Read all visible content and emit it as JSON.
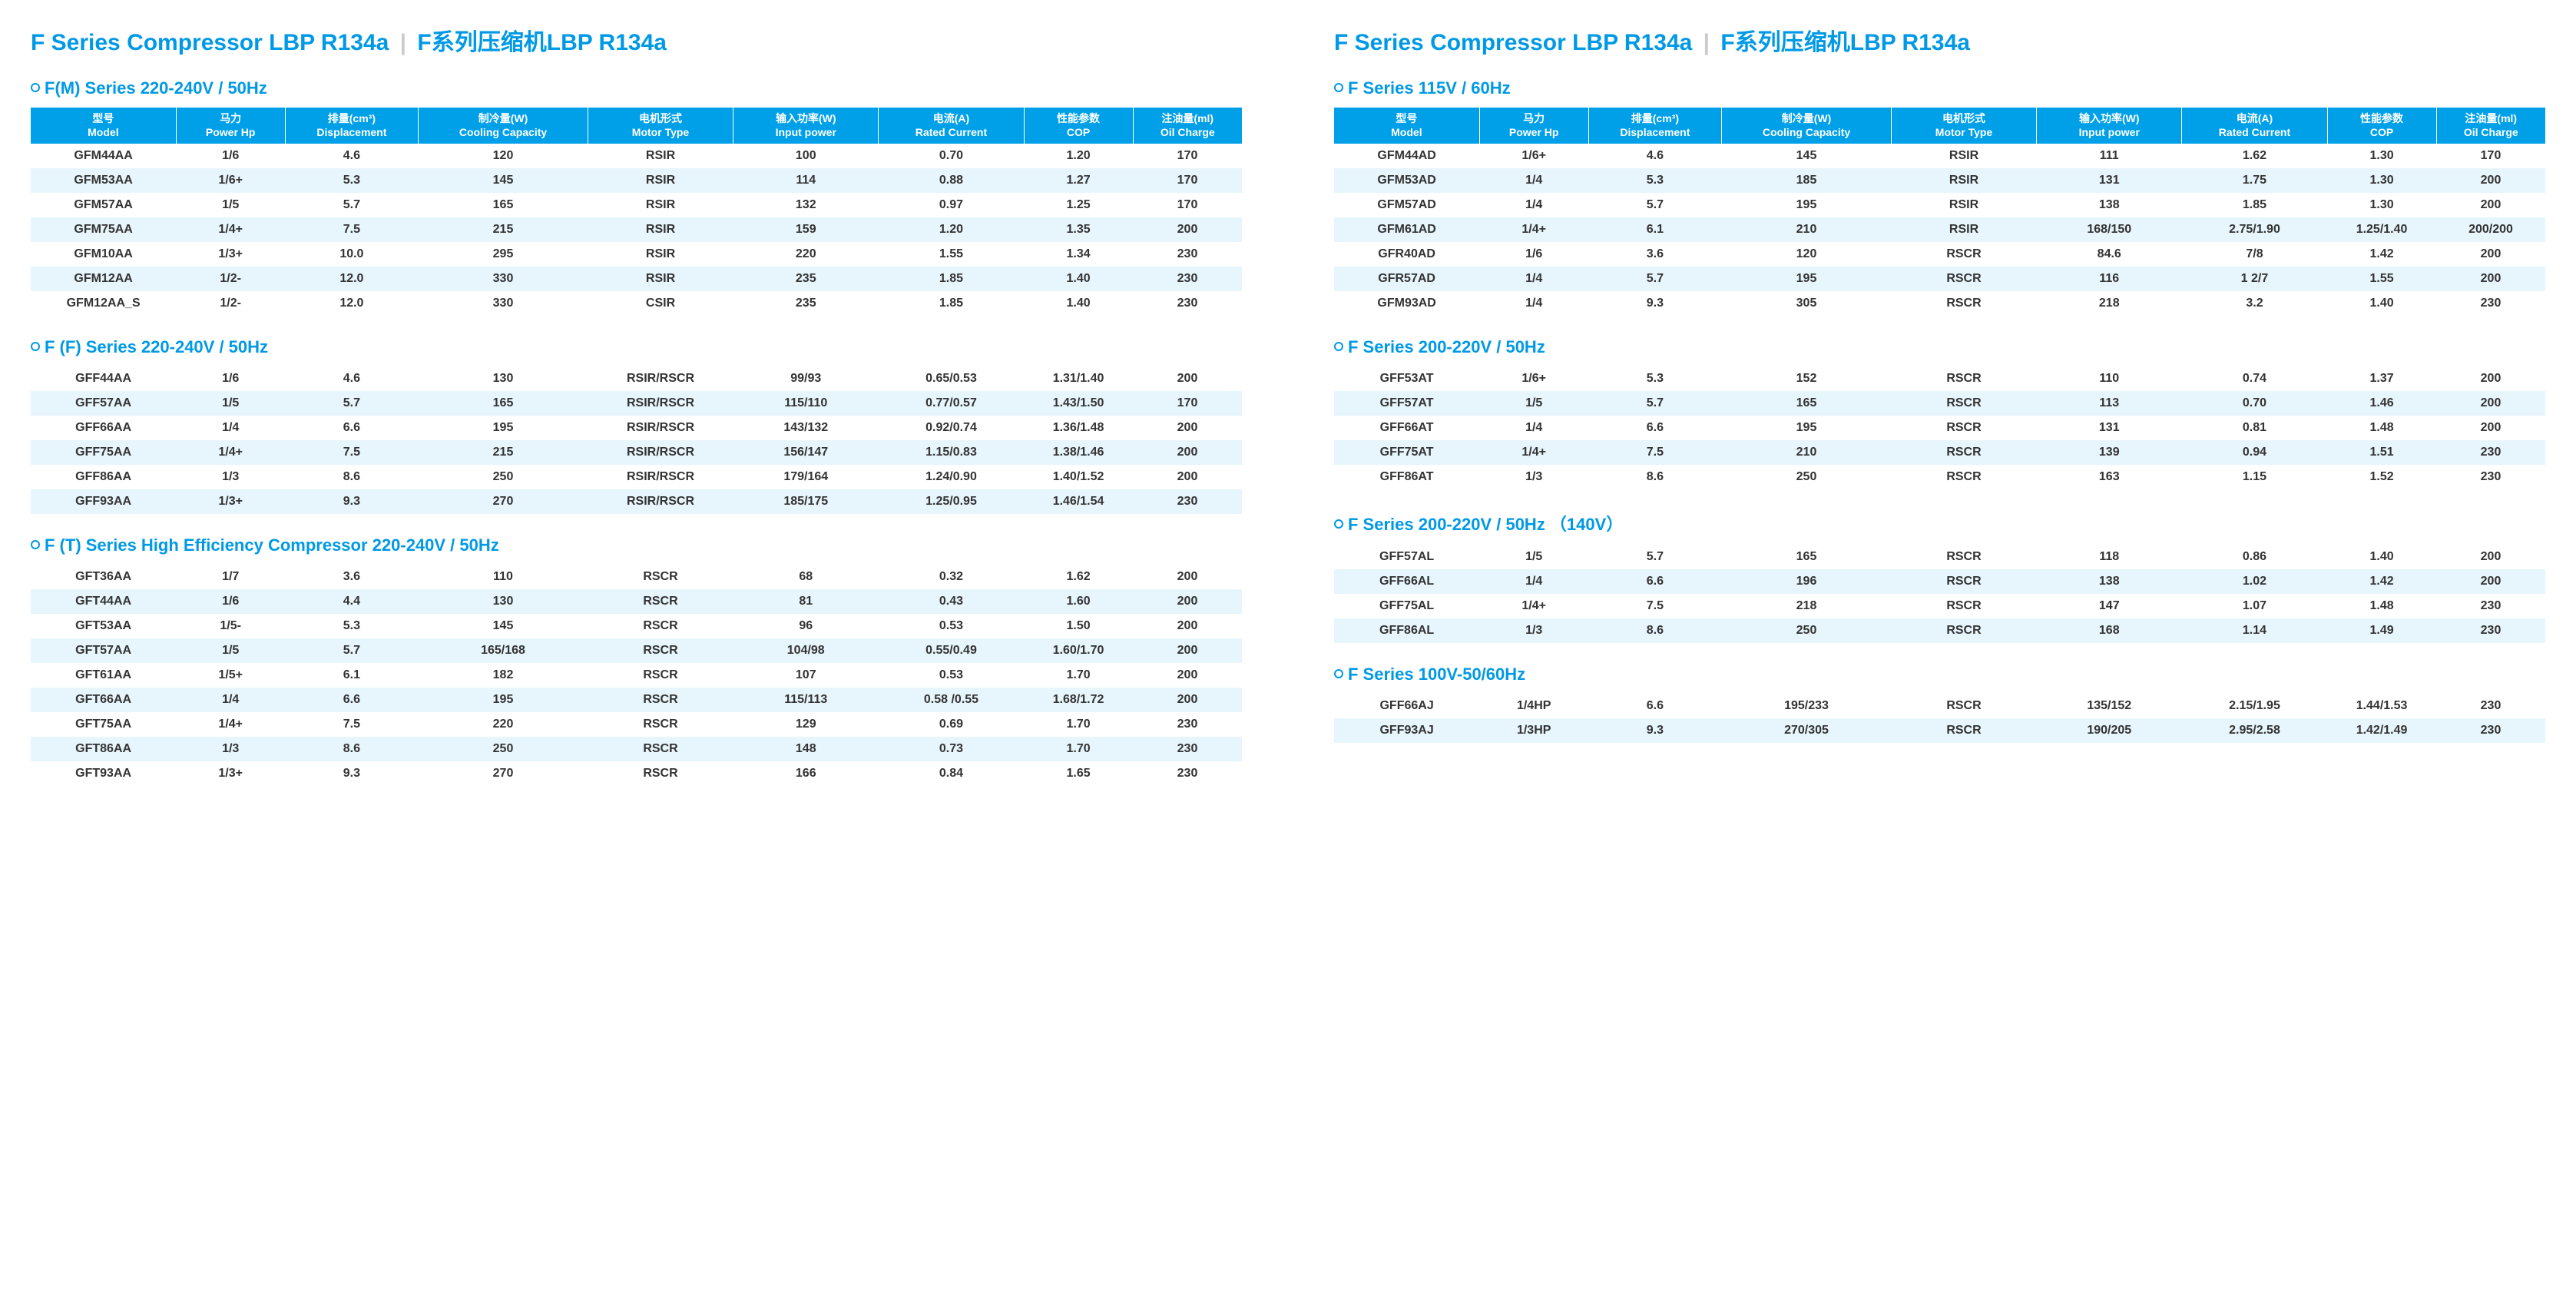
{
  "colors": {
    "brand": "#0099e5",
    "header_bg": "#00a0e9",
    "row_alt": "#e7f5fc",
    "text": "#333333",
    "bg": "#ffffff"
  },
  "page_title_en": "F Series Compressor LBP R134a",
  "page_title_zh": "F系列压缩机LBP R134a",
  "headers": [
    {
      "zh": "型号",
      "en": "Model"
    },
    {
      "zh": "马力",
      "en": "Power Hp"
    },
    {
      "zh": "排量(cm³)",
      "en": "Displacement"
    },
    {
      "zh": "制冷量(W)",
      "en": "Cooling Capacity"
    },
    {
      "zh": "电机形式",
      "en": "Motor Type"
    },
    {
      "zh": "输入功率(W)",
      "en": "Input power"
    },
    {
      "zh": "电流(A)",
      "en": "Rated Current"
    },
    {
      "zh": "性能参数",
      "en": "COP"
    },
    {
      "zh": "注油量(ml)",
      "en": "Oil Charge"
    }
  ],
  "col_widths": [
    "12%",
    "9%",
    "11%",
    "14%",
    "12%",
    "12%",
    "12%",
    "9%",
    "9%"
  ],
  "sections_left": [
    {
      "title": "F(M) Series  220-240V / 50Hz",
      "show_header": true,
      "rows": [
        [
          "GFM44AA",
          "1/6",
          "4.6",
          "120",
          "RSIR",
          "100",
          "0.70",
          "1.20",
          "170"
        ],
        [
          "GFM53AA",
          "1/6+",
          "5.3",
          "145",
          "RSIR",
          "114",
          "0.88",
          "1.27",
          "170"
        ],
        [
          "GFM57AA",
          "1/5",
          "5.7",
          "165",
          "RSIR",
          "132",
          "0.97",
          "1.25",
          "170"
        ],
        [
          "GFM75AA",
          "1/4+",
          "7.5",
          "215",
          "RSIR",
          "159",
          "1.20",
          "1.35",
          "200"
        ],
        [
          "GFM10AA",
          "1/3+",
          "10.0",
          "295",
          "RSIR",
          "220",
          "1.55",
          "1.34",
          "230"
        ],
        [
          "GFM12AA",
          "1/2-",
          "12.0",
          "330",
          "RSIR",
          "235",
          "1.85",
          "1.40",
          "230"
        ],
        [
          "GFM12AA_S",
          "1/2-",
          "12.0",
          "330",
          "CSIR",
          "235",
          "1.85",
          "1.40",
          "230"
        ]
      ]
    },
    {
      "title": "F (F) Series   220-240V / 50Hz",
      "show_header": false,
      "rows": [
        [
          "GFF44AA",
          "1/6",
          "4.6",
          "130",
          "RSIR/RSCR",
          "99/93",
          "0.65/0.53",
          "1.31/1.40",
          "200"
        ],
        [
          "GFF57AA",
          "1/5",
          "5.7",
          "165",
          "RSIR/RSCR",
          "115/110",
          "0.77/0.57",
          "1.43/1.50",
          "170"
        ],
        [
          "GFF66AA",
          "1/4",
          "6.6",
          "195",
          "RSIR/RSCR",
          "143/132",
          "0.92/0.74",
          "1.36/1.48",
          "200"
        ],
        [
          "GFF75AA",
          "1/4+",
          "7.5",
          "215",
          "RSIR/RSCR",
          "156/147",
          "1.15/0.83",
          "1.38/1.46",
          "200"
        ],
        [
          "GFF86AA",
          "1/3",
          "8.6",
          "250",
          "RSIR/RSCR",
          "179/164",
          "1.24/0.90",
          "1.40/1.52",
          "200"
        ],
        [
          "GFF93AA",
          "1/3+",
          "9.3",
          "270",
          "RSIR/RSCR",
          "185/175",
          "1.25/0.95",
          "1.46/1.54",
          "230"
        ]
      ]
    },
    {
      "title": "F (T) Series High Efficiency Compressor 220-240V / 50Hz",
      "show_header": false,
      "rows": [
        [
          "GFT36AA",
          "1/7",
          "3.6",
          "110",
          "RSCR",
          "68",
          "0.32",
          "1.62",
          "200"
        ],
        [
          "GFT44AA",
          "1/6",
          "4.4",
          "130",
          "RSCR",
          "81",
          "0.43",
          "1.60",
          "200"
        ],
        [
          "GFT53AA",
          "1/5-",
          "5.3",
          "145",
          "RSCR",
          "96",
          "0.53",
          "1.50",
          "200"
        ],
        [
          "GFT57AA",
          "1/5",
          "5.7",
          "165/168",
          "RSCR",
          "104/98",
          "0.55/0.49",
          "1.60/1.70",
          "200"
        ],
        [
          "GFT61AA",
          "1/5+",
          "6.1",
          "182",
          "RSCR",
          "107",
          "0.53",
          "1.70",
          "200"
        ],
        [
          "GFT66AA",
          "1/4",
          "6.6",
          "195",
          "RSCR",
          "115/113",
          "0.58 /0.55",
          "1.68/1.72",
          "200"
        ],
        [
          "GFT75AA",
          "1/4+",
          "7.5",
          "220",
          "RSCR",
          "129",
          "0.69",
          "1.70",
          "230"
        ],
        [
          "GFT86AA",
          "1/3",
          "8.6",
          "250",
          "RSCR",
          "148",
          "0.73",
          "1.70",
          "230"
        ],
        [
          "GFT93AA",
          "1/3+",
          "9.3",
          "270",
          "RSCR",
          "166",
          "0.84",
          "1.65",
          "230"
        ]
      ]
    }
  ],
  "sections_right": [
    {
      "title": "F  Series 115V / 60Hz",
      "show_header": true,
      "rows": [
        [
          "GFM44AD",
          "1/6+",
          "4.6",
          "145",
          "RSIR",
          "111",
          "1.62",
          "1.30",
          "170"
        ],
        [
          "GFM53AD",
          "1/4",
          "5.3",
          "185",
          "RSIR",
          "131",
          "1.75",
          "1.30",
          "200"
        ],
        [
          "GFM57AD",
          "1/4",
          "5.7",
          "195",
          "RSIR",
          "138",
          "1.85",
          "1.30",
          "200"
        ],
        [
          "GFM61AD",
          "1/4+",
          "6.1",
          "210",
          "RSIR",
          "168/150",
          "2.75/1.90",
          "1.25/1.40",
          "200/200"
        ],
        [
          "GFR40AD",
          "1/6",
          "3.6",
          "120",
          "RSCR",
          "84.6",
          "7/8",
          "1.42",
          "200"
        ],
        [
          "GFR57AD",
          "1/4",
          "5.7",
          "195",
          "RSCR",
          "116",
          "1 2/7",
          "1.55",
          "200"
        ],
        [
          "GFM93AD",
          "1/4",
          "9.3",
          "305",
          "RSCR",
          "218",
          "3.2",
          "1.40",
          "230"
        ]
      ]
    },
    {
      "title": "F  Series 200-220V / 50Hz",
      "show_header": false,
      "rows": [
        [
          "GFF53AT",
          "1/6+",
          "5.3",
          "152",
          "RSCR",
          "110",
          "0.74",
          "1.37",
          "200"
        ],
        [
          "GFF57AT",
          "1/5",
          "5.7",
          "165",
          "RSCR",
          "113",
          "0.70",
          "1.46",
          "200"
        ],
        [
          "GFF66AT",
          "1/4",
          "6.6",
          "195",
          "RSCR",
          "131",
          "0.81",
          "1.48",
          "200"
        ],
        [
          "GFF75AT",
          "1/4+",
          "7.5",
          "210",
          "RSCR",
          "139",
          "0.94",
          "1.51",
          "230"
        ],
        [
          "GFF86AT",
          "1/3",
          "8.6",
          "250",
          "RSCR",
          "163",
          "1.15",
          "1.52",
          "230"
        ]
      ]
    },
    {
      "title": "F  Series 200-220V / 50Hz （140V）",
      "show_header": false,
      "rows": [
        [
          "GFF57AL",
          "1/5",
          "5.7",
          "165",
          "RSCR",
          "118",
          "0.86",
          "1.40",
          "200"
        ],
        [
          "GFF66AL",
          "1/4",
          "6.6",
          "196",
          "RSCR",
          "138",
          "1.02",
          "1.42",
          "200"
        ],
        [
          "GFF75AL",
          "1/4+",
          "7.5",
          "218",
          "RSCR",
          "147",
          "1.07",
          "1.48",
          "230"
        ],
        [
          "GFF86AL",
          "1/3",
          "8.6",
          "250",
          "RSCR",
          "168",
          "1.14",
          "1.49",
          "230"
        ]
      ]
    },
    {
      "title": "F  Series 100V-50/60Hz",
      "show_header": false,
      "rows": [
        [
          "GFF66AJ",
          "1/4HP",
          "6.6",
          "195/233",
          "RSCR",
          "135/152",
          "2.15/1.95",
          "1.44/1.53",
          "230"
        ],
        [
          "GFF93AJ",
          "1/3HP",
          "9.3",
          "270/305",
          "RSCR",
          "190/205",
          "2.95/2.58",
          "1.42/1.49",
          "230"
        ]
      ]
    }
  ]
}
